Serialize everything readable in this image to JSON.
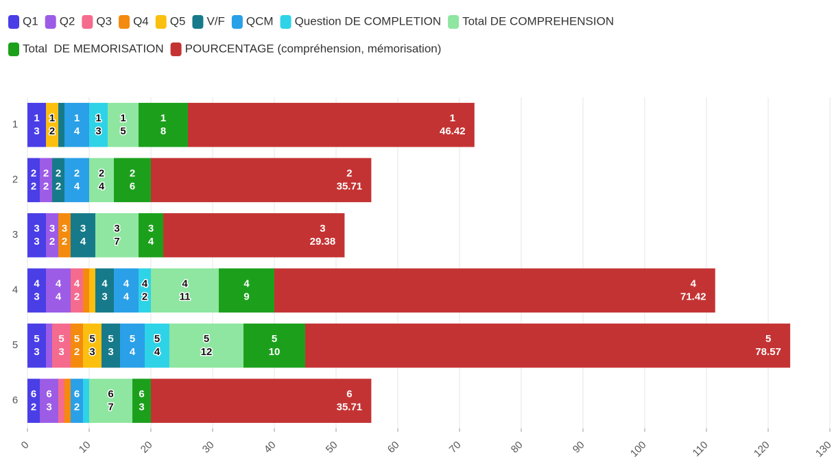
{
  "chart_data": {
    "type": "bar",
    "orientation": "horizontal",
    "stacked": true,
    "categories": [
      "1",
      "2",
      "3",
      "4",
      "5",
      "6"
    ],
    "series": [
      {
        "name": "Q1",
        "color": "#4a3ee6",
        "values": [
          3,
          2,
          3,
          3,
          3,
          2
        ]
      },
      {
        "name": "Q2",
        "color": "#9c5ce6",
        "values": [
          0,
          2,
          2,
          4,
          1,
          3
        ]
      },
      {
        "name": "Q3",
        "color": "#f56b8d",
        "values": [
          0,
          0,
          0,
          2,
          3,
          1
        ]
      },
      {
        "name": "Q4",
        "color": "#f48a0e",
        "values": [
          0,
          0,
          2,
          1,
          2,
          1
        ]
      },
      {
        "name": "Q5",
        "color": "#fbbf0f",
        "values": [
          2,
          0,
          0,
          1,
          3,
          0
        ]
      },
      {
        "name": "V/F",
        "color": "#167a8a",
        "values": [
          1,
          2,
          4,
          3,
          3,
          0
        ]
      },
      {
        "name": "QCM",
        "color": "#2aa0e8",
        "values": [
          4,
          4,
          0,
          4,
          4,
          2
        ]
      },
      {
        "name": "Question DE COMPLETION",
        "color": "#2fd3e8",
        "values": [
          3,
          0,
          0,
          2,
          4,
          1
        ]
      },
      {
        "name": "Total DE COMPREHENSION",
        "color": "#8ee6a0",
        "values": [
          5,
          4,
          7,
          11,
          12,
          7
        ]
      },
      {
        "name": "Total  DE MEMORISATION",
        "color": "#1ca01c",
        "values": [
          8,
          6,
          4,
          9,
          10,
          3
        ]
      },
      {
        "name": "POURCENTAGE (compréhension, mémorisation)",
        "color": "#c43333",
        "values": [
          46.42,
          35.71,
          29.38,
          71.42,
          78.57,
          35.71
        ]
      }
    ],
    "xlim": [
      0,
      130
    ],
    "xticks": [
      0,
      10,
      20,
      30,
      40,
      50,
      60,
      70,
      80,
      90,
      100,
      110,
      120,
      130
    ],
    "grid": true
  }
}
